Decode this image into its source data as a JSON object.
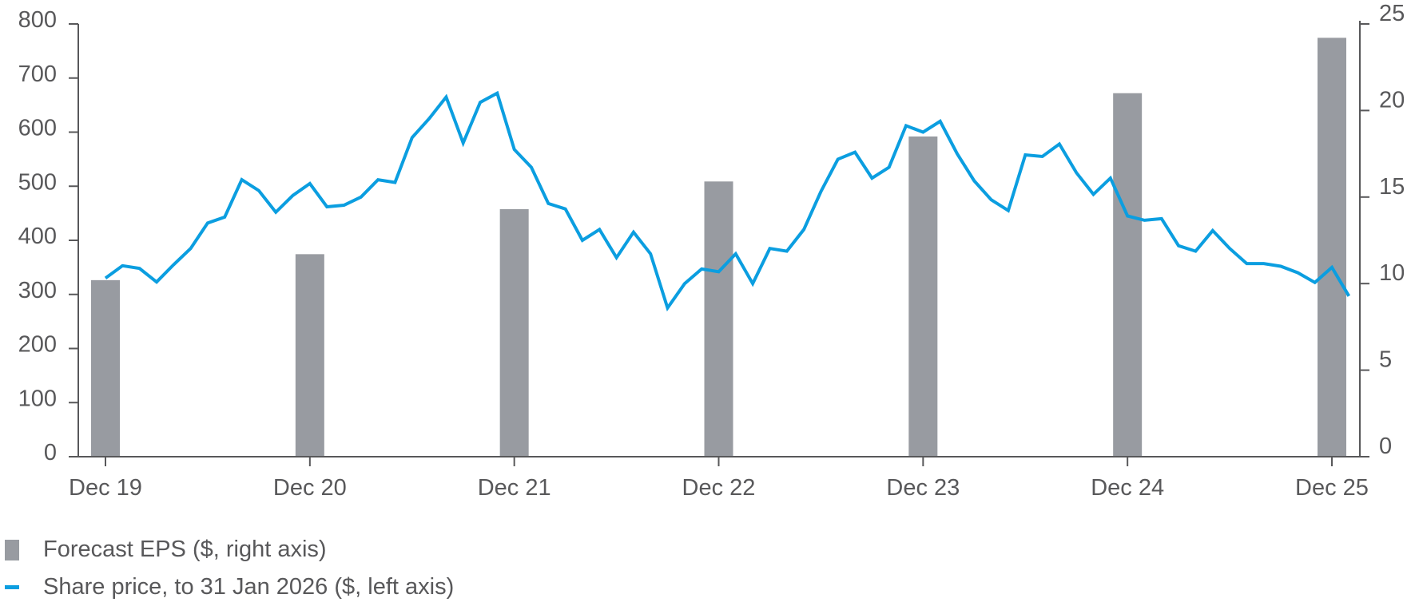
{
  "chart_data": {
    "type": "bar+line",
    "title": "",
    "x_tick_labels": [
      "Dec 19",
      "Dec 20",
      "Dec 21",
      "Dec 22",
      "Dec 23",
      "Dec 24",
      "Dec 25"
    ],
    "left_axis": {
      "label": "Share price ($)",
      "ticks": [
        "0",
        "100",
        "200",
        "300",
        "400",
        "500",
        "600",
        "700",
        "800"
      ],
      "range": [
        0,
        800
      ]
    },
    "right_axis": {
      "label": "Forecast EPS ($)",
      "ticks": [
        "0",
        "5",
        "10",
        "15",
        "20",
        "25"
      ],
      "range": [
        0,
        25
      ]
    },
    "grid": false,
    "legend_position": "bottom-left",
    "series": [
      {
        "name": "Forecast EPS ($, right axis)",
        "type": "bar",
        "axis": "right",
        "color": "#989ba1",
        "categories": [
          "Dec 19",
          "Dec 20",
          "Dec 21",
          "Dec 22",
          "Dec 23",
          "Dec 24",
          "Dec 25"
        ],
        "values": [
          10.2,
          11.7,
          14.3,
          15.9,
          18.5,
          21.0,
          24.2
        ]
      },
      {
        "name": "Share price, to 31 Jan 2026 ($, left axis)",
        "type": "line",
        "axis": "left",
        "color": "#0b9ee0",
        "x_start": "Dec 19",
        "x_end": "Jan 26",
        "frequency": "monthly",
        "values": [
          330,
          353,
          348,
          323,
          355,
          385,
          432,
          443,
          512,
          492,
          452,
          483,
          505,
          462,
          465,
          480,
          512,
          507,
          590,
          625,
          665,
          580,
          655,
          672,
          568,
          535,
          468,
          458,
          400,
          420,
          368,
          415,
          375,
          275,
          320,
          347,
          342,
          375,
          320,
          385,
          380,
          420,
          490,
          550,
          563,
          515,
          535,
          612,
          600,
          620,
          560,
          510,
          475,
          455,
          558,
          555,
          578,
          525,
          485,
          515,
          445,
          437,
          440,
          390,
          380,
          418,
          385,
          357,
          357,
          352,
          340,
          322,
          350,
          297
        ]
      }
    ]
  },
  "legend": {
    "bar_label": "Forecast EPS ($, right axis)",
    "line_label": "Share price, to 31 Jan 2026 ($, left axis)"
  }
}
